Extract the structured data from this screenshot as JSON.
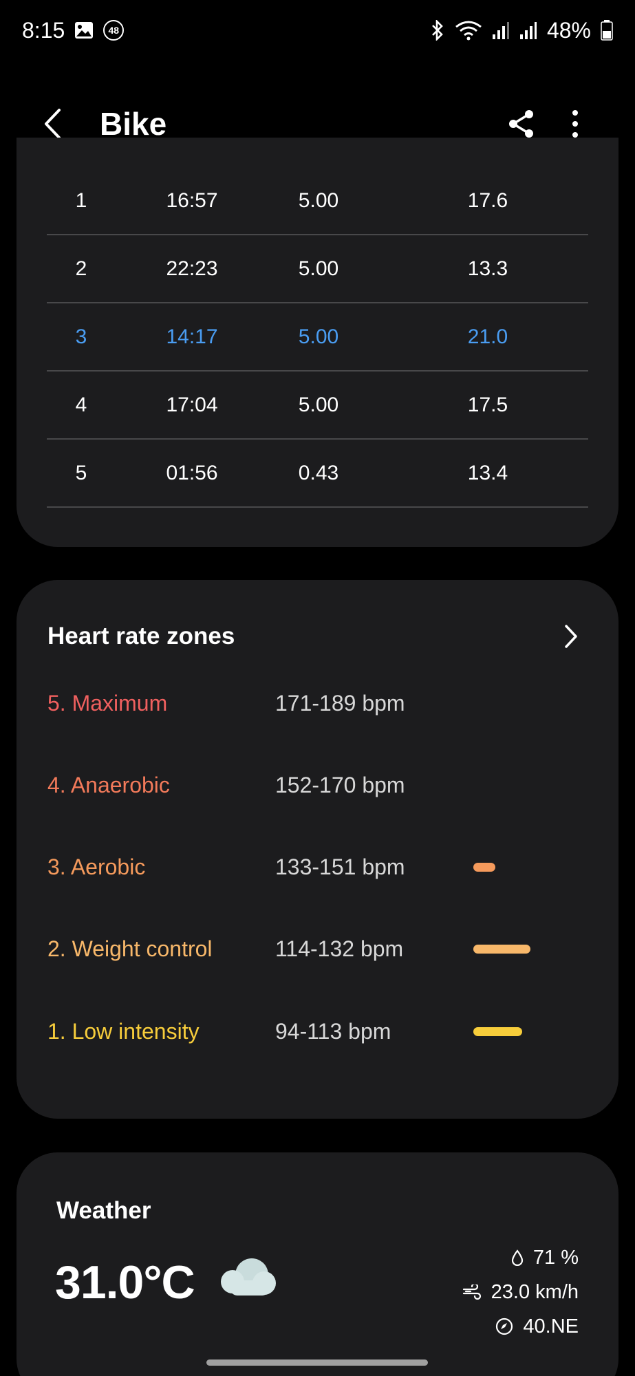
{
  "status_bar": {
    "time": "8:15",
    "notification_badge": "48",
    "battery": "48%"
  },
  "app_bar": {
    "title": "Bike"
  },
  "laps": {
    "rows": [
      {
        "lap": "1",
        "time": "16:57",
        "distance": "5.00",
        "speed": "17.6",
        "highlight": false
      },
      {
        "lap": "2",
        "time": "22:23",
        "distance": "5.00",
        "speed": "13.3",
        "highlight": false
      },
      {
        "lap": "3",
        "time": "14:17",
        "distance": "5.00",
        "speed": "21.0",
        "highlight": true
      },
      {
        "lap": "4",
        "time": "17:04",
        "distance": "5.00",
        "speed": "17.5",
        "highlight": false
      },
      {
        "lap": "5",
        "time": "01:56",
        "distance": "0.43",
        "speed": "13.4",
        "highlight": false
      }
    ],
    "highlight_color": "#4a9df2"
  },
  "heart_rate": {
    "title": "Heart rate zones",
    "zones": [
      {
        "name": "5. Maximum",
        "range": "171-189 bpm",
        "color": "#f0605f",
        "bar_fraction": 0
      },
      {
        "name": "4. Anaerobic",
        "range": "152-170 bpm",
        "color": "#f27a5a",
        "bar_fraction": 0
      },
      {
        "name": "3. Aerobic",
        "range": "133-151 bpm",
        "color": "#f59a5c",
        "bar_fraction": 0.28
      },
      {
        "name": "2. Weight control",
        "range": "114-132 bpm",
        "color": "#f8b86a",
        "bar_fraction": 0.72
      },
      {
        "name": "1. Low intensity",
        "range": "94-113 bpm",
        "color": "#f7cd3b",
        "bar_fraction": 0.62
      }
    ]
  },
  "weather": {
    "title": "Weather",
    "temperature": "31.0°C",
    "humidity": "71 %",
    "wind_speed": "23.0 km/h",
    "wind_direction": "40.NE"
  }
}
